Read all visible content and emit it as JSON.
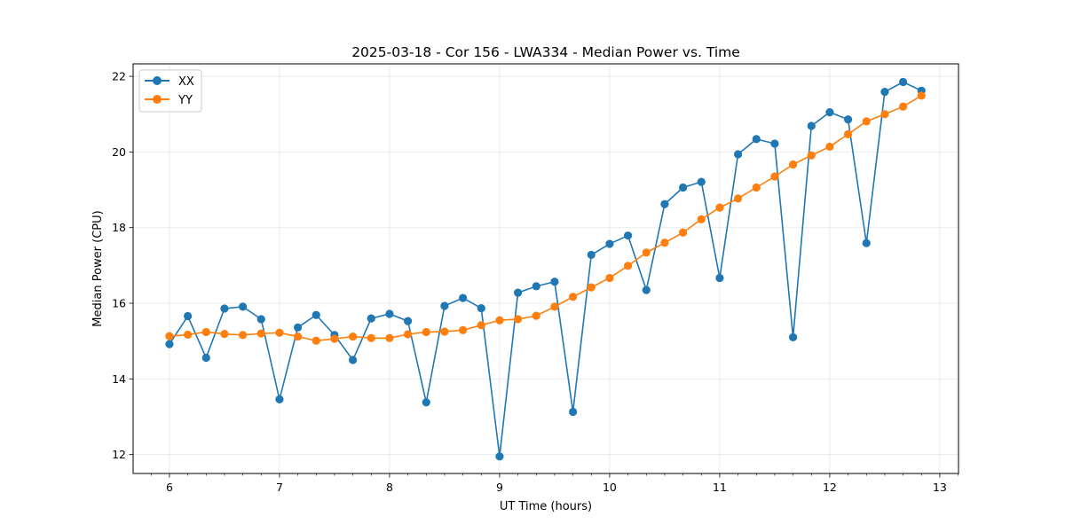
{
  "chart_data": {
    "type": "line",
    "title": "2025-03-18 - Cor 156 - LWA334 - Median Power vs. Time",
    "xlabel": "UT Time (hours)",
    "ylabel": "Median Power (CPU)",
    "xlim": [
      5.67,
      13.17
    ],
    "ylim": [
      11.5,
      22.33
    ],
    "xticks": [
      6,
      7,
      8,
      9,
      10,
      11,
      12,
      13
    ],
    "yticks": [
      12,
      14,
      16,
      18,
      20,
      22
    ],
    "grid": true,
    "legend_position": "upper-left",
    "x": [
      6.0,
      6.1667,
      6.3333,
      6.5,
      6.6667,
      6.8333,
      7.0,
      7.1667,
      7.3333,
      7.5,
      7.6667,
      7.8333,
      8.0,
      8.1667,
      8.3333,
      8.5,
      8.6667,
      8.8333,
      9.0,
      9.1667,
      9.3333,
      9.5,
      9.6667,
      9.8333,
      10.0,
      10.1667,
      10.3333,
      10.5,
      10.6667,
      10.8333,
      11.0,
      11.1667,
      11.3333,
      11.5,
      11.6667,
      11.8333,
      12.0,
      12.1667,
      12.3333,
      12.5,
      12.6667,
      12.8333
    ],
    "series": [
      {
        "name": "XX",
        "color": "#1f77b4",
        "values": [
          14.92,
          15.66,
          14.56,
          15.86,
          15.91,
          15.58,
          13.46,
          15.36,
          15.69,
          15.16,
          14.5,
          15.6,
          15.72,
          15.53,
          13.38,
          15.93,
          16.14,
          15.87,
          11.95,
          16.28,
          16.45,
          16.57,
          13.13,
          17.28,
          17.57,
          17.79,
          16.35,
          18.62,
          19.06,
          19.21,
          16.67,
          19.94,
          20.34,
          20.22,
          15.1,
          20.69,
          21.05,
          20.86,
          17.59,
          21.59,
          21.85,
          21.62
        ]
      },
      {
        "name": "YY",
        "color": "#ff7f0e",
        "values": [
          15.13,
          15.17,
          15.24,
          15.19,
          15.16,
          15.2,
          15.22,
          15.12,
          15.01,
          15.06,
          15.12,
          15.08,
          15.08,
          15.18,
          15.24,
          15.25,
          15.29,
          15.42,
          15.55,
          15.58,
          15.67,
          15.91,
          16.17,
          16.42,
          16.67,
          16.99,
          17.34,
          17.6,
          17.87,
          18.22,
          18.53,
          18.77,
          19.06,
          19.35,
          19.67,
          19.91,
          20.14,
          20.47,
          20.81,
          21.0,
          21.2,
          21.49
        ]
      }
    ]
  }
}
